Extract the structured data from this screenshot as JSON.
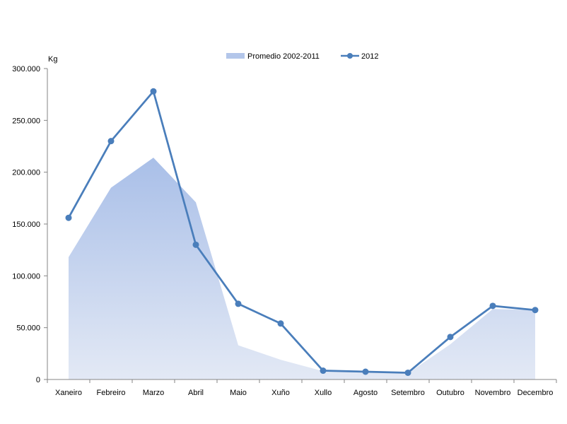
{
  "chart_data": {
    "type": "line",
    "title": "",
    "xlabel": "",
    "ylabel": "Kg",
    "ylim": [
      0,
      300000
    ],
    "yticks": [
      0,
      50000,
      100000,
      150000,
      200000,
      250000,
      300000
    ],
    "ytick_labels": [
      "0",
      "50.000",
      "100.000",
      "150.000",
      "200.000",
      "250.000",
      "300.000"
    ],
    "categories": [
      "Xaneiro",
      "Febreiro",
      "Marzo",
      "Abril",
      "Maio",
      "Xuño",
      "Xullo",
      "Agosto",
      "Setembro",
      "Outubro",
      "Novembro",
      "Decembro"
    ],
    "grid": false,
    "legend_position": "top-center",
    "series": [
      {
        "name": "Promedio 2002-2011",
        "type": "area",
        "color": "#b3c6ea",
        "values": [
          118000,
          185000,
          214000,
          171000,
          33000,
          19000,
          8000,
          7000,
          6000,
          34000,
          68000,
          67000
        ]
      },
      {
        "name": "2012",
        "type": "line",
        "color": "#4a7ebb",
        "values": [
          156000,
          230000,
          278000,
          130000,
          73000,
          54000,
          8500,
          7500,
          6500,
          41000,
          71000,
          67000
        ]
      }
    ]
  }
}
